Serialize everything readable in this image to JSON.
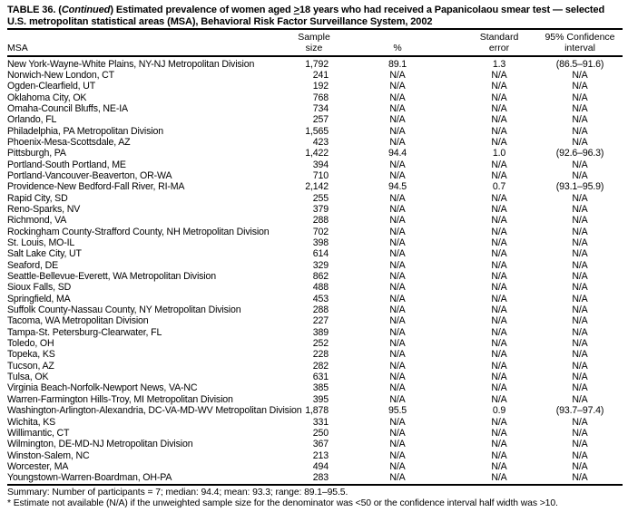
{
  "title": {
    "line1": {
      "prefix": "TABLE 36. (",
      "continued": "Continued",
      "mid": ") Estimated prevalence of women aged ",
      "gte": ">",
      "rest": "18 years who had received a Papanicolaou smear test — selected"
    },
    "line2": "U.S. metropolitan statistical areas (MSA), Behavioral Risk Factor Surveillance System, 2002"
  },
  "table": {
    "columns": {
      "msa": "MSA",
      "sample_line1": "Sample",
      "sample_line2": "size",
      "percent": "%",
      "se_line1": "Standard",
      "se_line2": "error",
      "ci_line1": "95% Confidence",
      "ci_line2": "interval"
    },
    "rows": [
      {
        "msa": "New York-Wayne-White Plains, NY-NJ Metropolitan Division",
        "n": "1,792",
        "pct": "89.1",
        "se": "1.3",
        "ci": "(86.5–91.6)"
      },
      {
        "msa": "Norwich-New London, CT",
        "n": "241",
        "pct": "N/A",
        "se": "N/A",
        "ci": "N/A"
      },
      {
        "msa": "Ogden-Clearfield, UT",
        "n": "192",
        "pct": "N/A",
        "se": "N/A",
        "ci": "N/A"
      },
      {
        "msa": "Oklahoma City, OK",
        "n": "768",
        "pct": "N/A",
        "se": "N/A",
        "ci": "N/A"
      },
      {
        "msa": "Omaha-Council Bluffs, NE-IA",
        "n": "734",
        "pct": "N/A",
        "se": "N/A",
        "ci": "N/A"
      },
      {
        "msa": "Orlando, FL",
        "n": "257",
        "pct": "N/A",
        "se": "N/A",
        "ci": "N/A"
      },
      {
        "msa": "Philadelphia, PA Metropolitan Division",
        "n": "1,565",
        "pct": "N/A",
        "se": "N/A",
        "ci": "N/A"
      },
      {
        "msa": "Phoenix-Mesa-Scottsdale, AZ",
        "n": "423",
        "pct": "N/A",
        "se": "N/A",
        "ci": "N/A"
      },
      {
        "msa": "Pittsburgh, PA",
        "n": "1,422",
        "pct": "94.4",
        "se": "1.0",
        "ci": "(92.6–96.3)"
      },
      {
        "msa": "Portland-South Portland, ME",
        "n": "394",
        "pct": "N/A",
        "se": "N/A",
        "ci": "N/A"
      },
      {
        "msa": "Portland-Vancouver-Beaverton, OR-WA",
        "n": "710",
        "pct": "N/A",
        "se": "N/A",
        "ci": "N/A"
      },
      {
        "msa": "Providence-New Bedford-Fall River, RI-MA",
        "n": "2,142",
        "pct": "94.5",
        "se": "0.7",
        "ci": "(93.1–95.9)"
      },
      {
        "msa": "Rapid City, SD",
        "n": "255",
        "pct": "N/A",
        "se": "N/A",
        "ci": "N/A"
      },
      {
        "msa": "Reno-Sparks, NV",
        "n": "379",
        "pct": "N/A",
        "se": "N/A",
        "ci": "N/A"
      },
      {
        "msa": "Richmond, VA",
        "n": "288",
        "pct": "N/A",
        "se": "N/A",
        "ci": "N/A"
      },
      {
        "msa": "Rockingham County-Strafford County, NH Metropolitan Division",
        "n": "702",
        "pct": "N/A",
        "se": "N/A",
        "ci": "N/A"
      },
      {
        "msa": "St. Louis, MO-IL",
        "n": "398",
        "pct": "N/A",
        "se": "N/A",
        "ci": "N/A"
      },
      {
        "msa": "Salt Lake City, UT",
        "n": "614",
        "pct": "N/A",
        "se": "N/A",
        "ci": "N/A"
      },
      {
        "msa": "Seaford, DE",
        "n": "329",
        "pct": "N/A",
        "se": "N/A",
        "ci": "N/A"
      },
      {
        "msa": "Seattle-Bellevue-Everett, WA Metropolitan Division",
        "n": "862",
        "pct": "N/A",
        "se": "N/A",
        "ci": "N/A"
      },
      {
        "msa": "Sioux Falls, SD",
        "n": "488",
        "pct": "N/A",
        "se": "N/A",
        "ci": "N/A"
      },
      {
        "msa": "Springfield, MA",
        "n": "453",
        "pct": "N/A",
        "se": "N/A",
        "ci": "N/A"
      },
      {
        "msa": "Suffolk County-Nassau County, NY Metropolitan Division",
        "n": "288",
        "pct": "N/A",
        "se": "N/A",
        "ci": "N/A"
      },
      {
        "msa": "Tacoma, WA Metropolitan Division",
        "n": "227",
        "pct": "N/A",
        "se": "N/A",
        "ci": "N/A"
      },
      {
        "msa": "Tampa-St. Petersburg-Clearwater, FL",
        "n": "389",
        "pct": "N/A",
        "se": "N/A",
        "ci": "N/A"
      },
      {
        "msa": "Toledo, OH",
        "n": "252",
        "pct": "N/A",
        "se": "N/A",
        "ci": "N/A"
      },
      {
        "msa": "Topeka, KS",
        "n": "228",
        "pct": "N/A",
        "se": "N/A",
        "ci": "N/A"
      },
      {
        "msa": "Tucson, AZ",
        "n": "282",
        "pct": "N/A",
        "se": "N/A",
        "ci": "N/A"
      },
      {
        "msa": "Tulsa, OK",
        "n": "631",
        "pct": "N/A",
        "se": "N/A",
        "ci": "N/A"
      },
      {
        "msa": "Virginia Beach-Norfolk-Newport News, VA-NC",
        "n": "385",
        "pct": "N/A",
        "se": "N/A",
        "ci": "N/A"
      },
      {
        "msa": "Warren-Farmington Hills-Troy, MI Metropolitan Division",
        "n": "395",
        "pct": "N/A",
        "se": "N/A",
        "ci": "N/A"
      },
      {
        "msa": "Washington-Arlington-Alexandria, DC-VA-MD-WV Metropolitan Division",
        "n": "1,878",
        "pct": "95.5",
        "se": "0.9",
        "ci": "(93.7–97.4)"
      },
      {
        "msa": "Wichita, KS",
        "n": "331",
        "pct": "N/A",
        "se": "N/A",
        "ci": "N/A"
      },
      {
        "msa": "Willimantic, CT",
        "n": "250",
        "pct": "N/A",
        "se": "N/A",
        "ci": "N/A"
      },
      {
        "msa": "Wilmington, DE-MD-NJ Metropolitan Division",
        "n": "367",
        "pct": "N/A",
        "se": "N/A",
        "ci": "N/A"
      },
      {
        "msa": "Winston-Salem, NC",
        "n": "213",
        "pct": "N/A",
        "se": "N/A",
        "ci": "N/A"
      },
      {
        "msa": "Worcester, MA",
        "n": "494",
        "pct": "N/A",
        "se": "N/A",
        "ci": "N/A"
      },
      {
        "msa": "Youngstown-Warren-Boardman, OH-PA",
        "n": "283",
        "pct": "N/A",
        "se": "N/A",
        "ci": "N/A"
      }
    ]
  },
  "footer": {
    "summary": "Summary: Number of participants = 7; median: 94.4; mean: 93.3; range: 89.1–95.5.",
    "footnote": "* Estimate not available (N/A) if the unweighted sample size for the denominator was <50 or the confidence interval half width was >10."
  }
}
